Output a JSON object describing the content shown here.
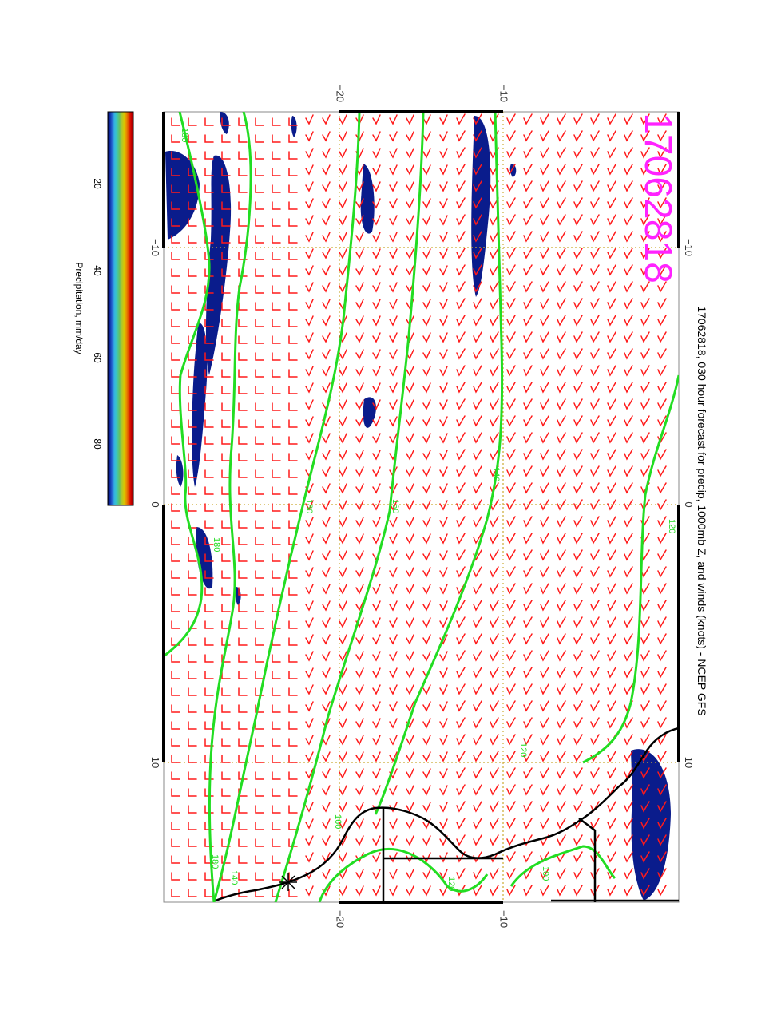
{
  "map": {
    "title": "17062818, 030 hour forecast for precip, 1000mb Z, and winds (knots) - NCEP GFS",
    "stamp": "17062818",
    "lon_ticks": [
      "−10",
      "0",
      "10"
    ],
    "lat_ticks": [
      "−20",
      "−10"
    ],
    "contour_labels": [
      "180",
      "180",
      "180",
      "180",
      "160",
      "160",
      "140",
      "140",
      "120",
      "120",
      "100",
      "120"
    ],
    "colors": {
      "wind_barb": "#ff1a1a",
      "contour": "#22dd22",
      "contour_label": "#22dd22",
      "grid": "#ccaa33",
      "precip": "#0a1c8c",
      "coast": "#000000",
      "stamp": "#ff22ff"
    }
  },
  "colorbar": {
    "label": "Precipitation, mm/day",
    "ticks": [
      "20",
      "40",
      "60",
      "80"
    ],
    "scale": [
      "#00004a",
      "#0f2fa8",
      "#2a74d8",
      "#35b8e0",
      "#3fc9b0",
      "#66c060",
      "#a8c830",
      "#d8c800",
      "#e89000",
      "#e04000",
      "#d40000",
      "#6a0000"
    ]
  }
}
